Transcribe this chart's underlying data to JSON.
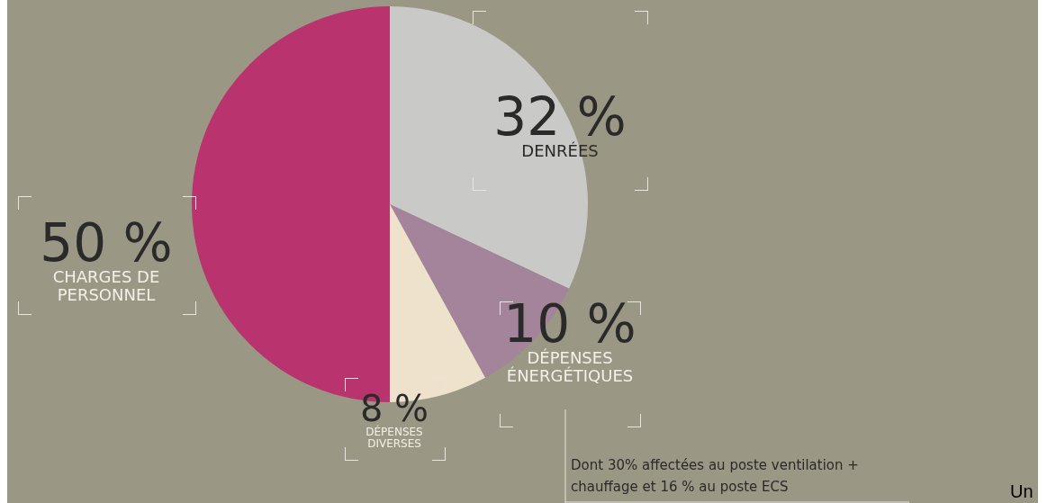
{
  "chart_data": {
    "type": "pie",
    "categories": [
      "DENRÉES",
      "DÉPENSES ÉNERGÉTIQUES",
      "DÉPENSES DIVERSES",
      "CHARGES DE PERSONNEL"
    ],
    "values": [
      32,
      10,
      8,
      50
    ],
    "value_labels": [
      "32 %",
      "10 %",
      "8 %",
      "50 %"
    ],
    "colors": [
      "#c9c9c7",
      "#a3849a",
      "#efe2cd",
      "#b9336f"
    ],
    "legend": false,
    "annotations": [
      "Dont 30% affectées au poste ventilation + chauffage et 16 % au poste ECS",
      "Un"
    ]
  }
}
